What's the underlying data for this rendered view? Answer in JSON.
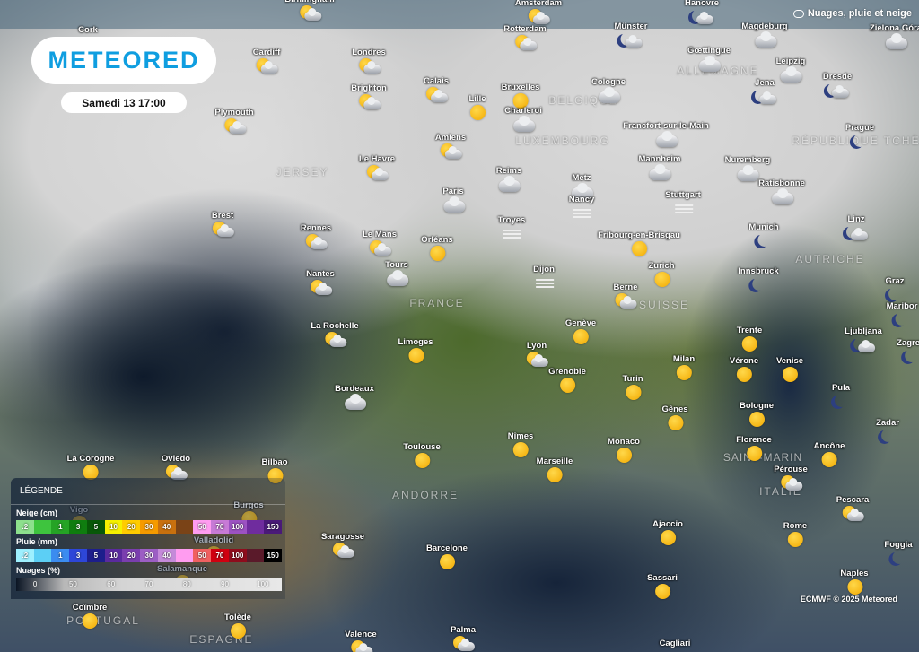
{
  "brand": {
    "logo": "METEORED"
  },
  "header": {
    "datetime": "Samedi 13 17:00",
    "layer_label": "Nuages, pluie et neige",
    "layer_icon": "cloud-icon"
  },
  "credit": "ECMWF © 2025 Meteored",
  "countries": [
    "ALLEMAGNE",
    "BELGIQUE",
    "LUXEMBOURG",
    "JERSEY",
    "FRANCE",
    "SUISSE",
    "AUTRICHE",
    "RÉPUBLIQUE TCHÈQUE",
    "SAINT-MARIN",
    "ITALIE",
    "ANDORRE",
    "PORTUGAL",
    "ESPAGNE"
  ],
  "cities": [
    {
      "name": "Cork",
      "icon": ""
    },
    {
      "name": "Birmingham",
      "icon": "sun-cloud"
    },
    {
      "name": "Amsterdam",
      "icon": "sun-cloud"
    },
    {
      "name": "Hanovre",
      "icon": "moon-cloud"
    },
    {
      "name": "Magdeburg",
      "icon": "cloud"
    },
    {
      "name": "Zielona Góra",
      "icon": "cloud"
    },
    {
      "name": "Cardiff",
      "icon": "sun-cloud"
    },
    {
      "name": "Londres",
      "icon": "sun-cloud"
    },
    {
      "name": "Rotterdam",
      "icon": "sun-cloud"
    },
    {
      "name": "Münster",
      "icon": "moon-cloud"
    },
    {
      "name": "Gœttingue",
      "icon": "cloud"
    },
    {
      "name": "Leipzig",
      "icon": "cloud"
    },
    {
      "name": "Dresde",
      "icon": "moon-cloud"
    },
    {
      "name": "Brighton",
      "icon": "sun-cloud"
    },
    {
      "name": "Calais",
      "icon": "sun-cloud"
    },
    {
      "name": "Lille",
      "icon": "sun"
    },
    {
      "name": "Bruxelles",
      "icon": "sun"
    },
    {
      "name": "Charleroi",
      "icon": "cloud"
    },
    {
      "name": "Cologne",
      "icon": "cloud"
    },
    {
      "name": "Jena",
      "icon": "moon-cloud"
    },
    {
      "name": "Plymouth",
      "icon": "sun-cloud"
    },
    {
      "name": "Prague",
      "icon": "moon"
    },
    {
      "name": "Francfort-sur-le-Main",
      "icon": "cloud"
    },
    {
      "name": "Amiens",
      "icon": "sun-cloud"
    },
    {
      "name": "Le Havre",
      "icon": "sun-cloud"
    },
    {
      "name": "Mannheim",
      "icon": "cloud"
    },
    {
      "name": "Nuremberg",
      "icon": "cloud"
    },
    {
      "name": "Reims",
      "icon": "cloud"
    },
    {
      "name": "Metz",
      "icon": "cloud"
    },
    {
      "name": "Paris",
      "icon": "cloud"
    },
    {
      "name": "Ratisbonne",
      "icon": "cloud"
    },
    {
      "name": "Nancy",
      "icon": "fog"
    },
    {
      "name": "Stuttgart",
      "icon": "fog"
    },
    {
      "name": "Troyes",
      "icon": "fog"
    },
    {
      "name": "Brest",
      "icon": "sun-cloud"
    },
    {
      "name": "Rennes",
      "icon": "sun-cloud"
    },
    {
      "name": "Le Mans",
      "icon": "sun-cloud"
    },
    {
      "name": "Orléans",
      "icon": "sun"
    },
    {
      "name": "Fribourg-en-Brisgau",
      "icon": "sun"
    },
    {
      "name": "Munich",
      "icon": "moon"
    },
    {
      "name": "Linz",
      "icon": "moon-cloud"
    },
    {
      "name": "Dijon",
      "icon": "fog"
    },
    {
      "name": "Tours",
      "icon": "cloud"
    },
    {
      "name": "Nantes",
      "icon": "sun-cloud"
    },
    {
      "name": "Zurich",
      "icon": "sun"
    },
    {
      "name": "Innsbruck",
      "icon": "moon"
    },
    {
      "name": "Graz",
      "icon": "moon"
    },
    {
      "name": "Berne",
      "icon": "sun-cloud"
    },
    {
      "name": "Maribor",
      "icon": "moon"
    },
    {
      "name": "Genève",
      "icon": "sun"
    },
    {
      "name": "Trente",
      "icon": "sun"
    },
    {
      "name": "Ljubljana",
      "icon": "moon-cloud"
    },
    {
      "name": "Zagreb",
      "icon": "moon"
    },
    {
      "name": "La Rochelle",
      "icon": "sun-cloud"
    },
    {
      "name": "Limoges",
      "icon": "sun"
    },
    {
      "name": "Lyon",
      "icon": "sun-cloud"
    },
    {
      "name": "Milan",
      "icon": "sun"
    },
    {
      "name": "Vérone",
      "icon": "sun"
    },
    {
      "name": "Venise",
      "icon": "sun"
    },
    {
      "name": "Grenoble",
      "icon": "sun"
    },
    {
      "name": "Turin",
      "icon": "sun"
    },
    {
      "name": "Pula",
      "icon": "moon"
    },
    {
      "name": "Bordeaux",
      "icon": "cloud"
    },
    {
      "name": "Bologne",
      "icon": "sun"
    },
    {
      "name": "Gênes",
      "icon": "sun"
    },
    {
      "name": "Zadar",
      "icon": "moon"
    },
    {
      "name": "Nîmes",
      "icon": "sun"
    },
    {
      "name": "Toulouse",
      "icon": "sun"
    },
    {
      "name": "Monaco",
      "icon": "sun"
    },
    {
      "name": "Florence",
      "icon": "sun"
    },
    {
      "name": "Ancône",
      "icon": "sun"
    },
    {
      "name": "Marseille",
      "icon": "sun"
    },
    {
      "name": "Pérouse",
      "icon": "sun-cloud"
    },
    {
      "name": "La Corogne",
      "icon": "sun"
    },
    {
      "name": "Oviedo",
      "icon": "sun-cloud"
    },
    {
      "name": "Bilbao",
      "icon": "sun"
    },
    {
      "name": "Vigo",
      "icon": "sun"
    },
    {
      "name": "Burgos",
      "icon": "sun"
    },
    {
      "name": "Valladolid",
      "icon": "sun"
    },
    {
      "name": "Pescara",
      "icon": "sun-cloud"
    },
    {
      "name": "Ajaccio",
      "icon": "sun"
    },
    {
      "name": "Saragosse",
      "icon": "sun-cloud"
    },
    {
      "name": "Barcelone",
      "icon": "sun"
    },
    {
      "name": "Rome",
      "icon": "sun"
    },
    {
      "name": "Foggia",
      "icon": "moon"
    },
    {
      "name": "Salamanque",
      "icon": "sun"
    },
    {
      "name": "Sassari",
      "icon": "sun"
    },
    {
      "name": "Naples",
      "icon": "sun"
    },
    {
      "name": "Coïmbre",
      "icon": "sun"
    },
    {
      "name": "Tolède",
      "icon": "sun"
    },
    {
      "name": "Palma",
      "icon": "sun-cloud"
    },
    {
      "name": "Valence",
      "icon": "sun-cloud"
    },
    {
      "name": "Cagliari",
      "icon": ""
    }
  ],
  "legend": {
    "title": "LÉGENDE",
    "snow": {
      "label": "Neige (cm)",
      "ticks": [
        ".2",
        "1",
        "3",
        "5",
        "10",
        "20",
        "30",
        "40",
        "50",
        "70",
        "100",
        "150"
      ],
      "colors": [
        "#8de08d",
        "#3ec43e",
        "#25a325",
        "#0f7d0f",
        "#085808",
        "#f5f000",
        "#ffcc00",
        "#f59a00",
        "#c9700e",
        "#7a4317",
        "#ff9cf0",
        "#c77ad6",
        "#9c52c2",
        "#6f2c9e",
        "#4a1a78"
      ]
    },
    "rain": {
      "label": "Pluie (mm)",
      "ticks": [
        ".2",
        "1",
        "3",
        "5",
        "10",
        "20",
        "30",
        "40",
        "50",
        "70",
        "100",
        "150"
      ],
      "colors": [
        "#9ef0ff",
        "#5ccff5",
        "#3b8cf0",
        "#2d46d8",
        "#1d1e8c",
        "#5a2a9e",
        "#7a3eae",
        "#9c5ec4",
        "#c48ad9",
        "#ff9cf0",
        "#f06060",
        "#d00010",
        "#8e0c1c",
        "#5a1a2a",
        "#000000"
      ]
    },
    "clouds": {
      "label": "Nuages (%)",
      "ticks": [
        "0",
        "50",
        "60",
        "70",
        "80",
        "90",
        "100"
      ]
    }
  }
}
